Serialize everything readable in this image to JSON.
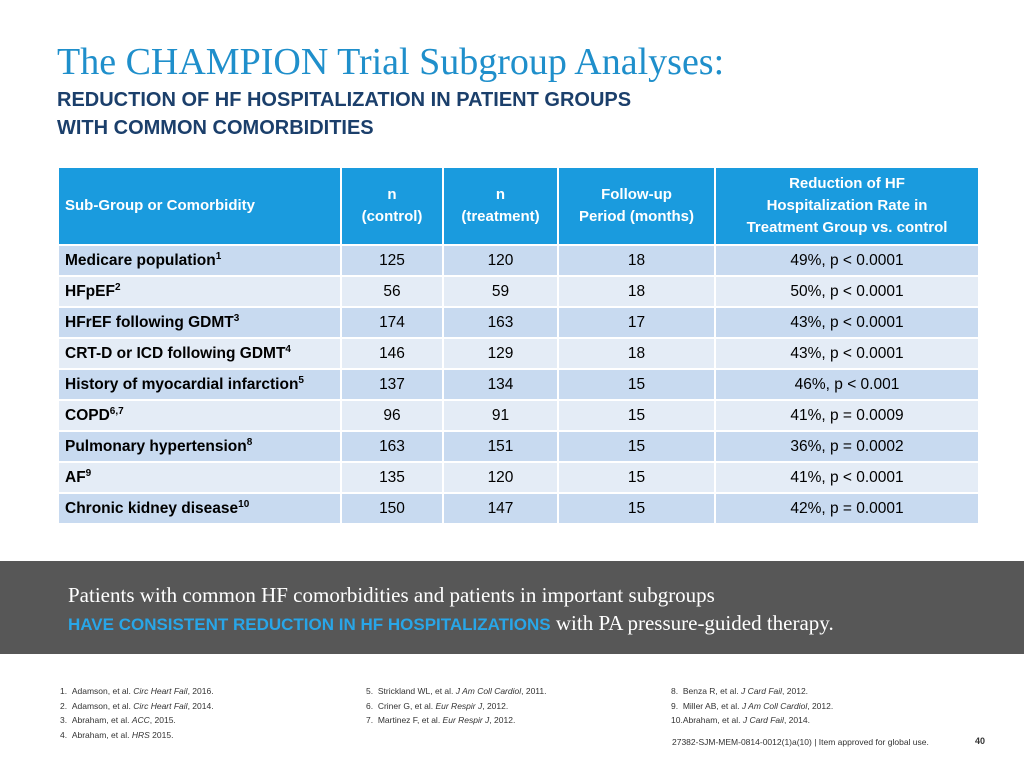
{
  "title": "The CHAMPION Trial Subgroup Analyses:",
  "subtitle_line1": "REDUCTION OF HF HOSPITALIZATION IN PATIENT GROUPS",
  "subtitle_line2": "WITH COMMON COMORBIDITIES",
  "table": {
    "headers": [
      {
        "lines": [
          "Sub-Group or Comorbidity"
        ]
      },
      {
        "lines": [
          "n",
          "(control)"
        ]
      },
      {
        "lines": [
          "n",
          "(treatment)"
        ]
      },
      {
        "lines": [
          "Follow-up",
          "Period (months)"
        ]
      },
      {
        "lines": [
          "Reduction of HF",
          "Hospitalization Rate in",
          "Treatment Group vs. control"
        ]
      }
    ],
    "rows": [
      {
        "name": "Medicare population",
        "sup": "1",
        "control": "125",
        "treatment": "120",
        "followup": "18",
        "reduction": "49%, p < 0.0001"
      },
      {
        "name": "HFpEF",
        "sup": "2",
        "control": "56",
        "treatment": "59",
        "followup": "18",
        "reduction": "50%, p < 0.0001"
      },
      {
        "name": "HFrEF following GDMT",
        "sup": "3",
        "control": "174",
        "treatment": "163",
        "followup": "17",
        "reduction": "43%, p < 0.0001"
      },
      {
        "name": "CRT-D or ICD following GDMT",
        "sup": "4",
        "control": "146",
        "treatment": "129",
        "followup": "18",
        "reduction": "43%, p < 0.0001"
      },
      {
        "name": "History of myocardial infarction",
        "sup": "5",
        "control": "137",
        "treatment": "134",
        "followup": "15",
        "reduction": "46%, p < 0.001"
      },
      {
        "name": "COPD",
        "sup": "6,7",
        "control": "96",
        "treatment": "91",
        "followup": "15",
        "reduction": "41%, p = 0.0009"
      },
      {
        "name": "Pulmonary hypertension",
        "sup": "8",
        "control": "163",
        "treatment": "151",
        "followup": "15",
        "reduction": "36%, p = 0.0002"
      },
      {
        "name": "AF",
        "sup": "9",
        "control": "135",
        "treatment": "120",
        "followup": "15",
        "reduction": "41%, p < 0.0001"
      },
      {
        "name": "Chronic kidney disease",
        "sup": "10",
        "control": "150",
        "treatment": "147",
        "followup": "15",
        "reduction": "42%, p = 0.0001"
      }
    ]
  },
  "banner": {
    "line1": "Patients with common HF comorbidities and patients in important subgroups",
    "line2_emphasis": "HAVE CONSISTENT REDUCTION IN HF HOSPITALIZATIONS",
    "line2_rest": " with PA pressure-guided therapy."
  },
  "references": {
    "col1": [
      {
        "num": "1.",
        "pre": "Adamson, et al. ",
        "journal": "Circ Heart Fail",
        "post": ", 2016."
      },
      {
        "num": "2.",
        "pre": "Adamson, et al. ",
        "journal": "Circ Heart Fail",
        "post": ", 2014."
      },
      {
        "num": "3.",
        "pre": "Abraham, et al. ",
        "journal": "ACC",
        "post": ", 2015."
      },
      {
        "num": "4.",
        "pre": "Abraham, et al. ",
        "journal": "HRS",
        "post": " 2015."
      }
    ],
    "col2": [
      {
        "num": "5.",
        "pre": "Strickland WL, et al. ",
        "journal": "J Am Coll Cardiol",
        "post": ", 2011."
      },
      {
        "num": "6.",
        "pre": "Criner G, et al. ",
        "journal": "Eur Respir J",
        "post": ", 2012."
      },
      {
        "num": "7.",
        "pre": "Martinez F, et al. ",
        "journal": "Eur Respir J",
        "post": ", 2012."
      }
    ],
    "col3": [
      {
        "num": "8.",
        "pre": "Benza R, et al. ",
        "journal": "J Card Fail",
        "post": ", 2012."
      },
      {
        "num": "9.",
        "pre": "Miller AB, et al. ",
        "journal": "J Am Coll Cardiol",
        "post": ", 2012."
      },
      {
        "num": "10.",
        "pre": "Abraham, et al. ",
        "journal": "J Card Fail",
        "post": ", 2014."
      }
    ]
  },
  "footer_code": "27382-SJM-MEM-0814-0012(1)a(10) | Item approved for global use.",
  "page_number": "40",
  "colors": {
    "title": "#1f8fcb",
    "subtitle": "#1b3f6b",
    "header_bg": "#1a9bde",
    "row_odd": "#c8daf0",
    "row_even": "#e4ecf6",
    "banner_bg": "#575757",
    "banner_emphasis": "#28a6e8"
  }
}
